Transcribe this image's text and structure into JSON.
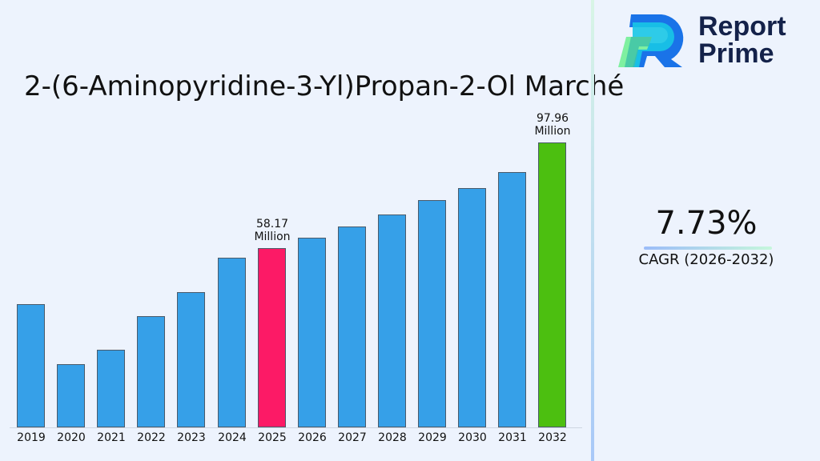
{
  "header": {
    "title": "2-(6-Aminopyridine-3-Yl)Propan-2-Ol Marché",
    "logo_line1": "Report",
    "logo_line2": "Prime"
  },
  "cagr": {
    "value": "7.73%",
    "label": "CAGR (2026-2032)"
  },
  "colors": {
    "default_bar": "#36a0e8",
    "highlight_2025": "#fc1a66",
    "highlight_2032": "#4cbf10",
    "background": "#edf3fd"
  },
  "annotations": {
    "2025": {
      "value": "58.17",
      "unit": "Million"
    },
    "2032": {
      "value": "97.96",
      "unit": "Million"
    }
  },
  "chart_data": {
    "type": "bar",
    "title": "2-(6-Aminopyridine-3-Yl)Propan-2-Ol Marché",
    "xlabel": "",
    "ylabel": "",
    "categories": [
      "2019",
      "2020",
      "2021",
      "2022",
      "2023",
      "2024",
      "2025",
      "2026",
      "2027",
      "2028",
      "2029",
      "2030",
      "2031",
      "2032"
    ],
    "values": [
      37.1,
      14.5,
      19.9,
      32.5,
      41.6,
      54.5,
      58.17,
      62.1,
      66.3,
      70.8,
      76.2,
      80.8,
      86.8,
      97.96
    ],
    "unit": "Million",
    "annotations": [
      {
        "category": "2025",
        "text": "58.17 Million"
      },
      {
        "category": "2032",
        "text": "97.96 Million"
      }
    ],
    "cagr": "7.73%",
    "cagr_period": "2026-2032",
    "grid": false,
    "legend": null
  }
}
